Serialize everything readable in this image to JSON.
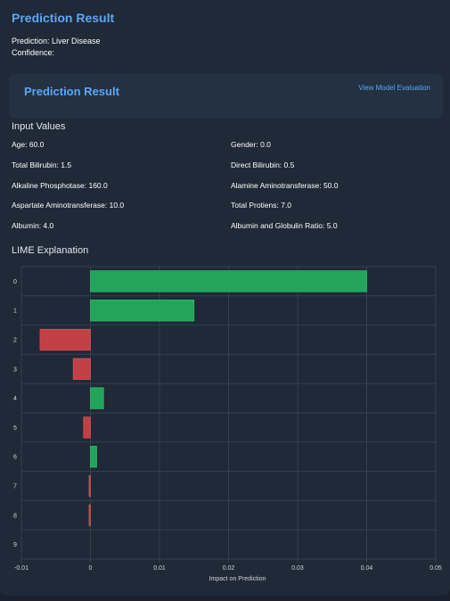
{
  "header": {
    "title": "Prediction Result",
    "prediction_label": "Prediction: Liver Disease",
    "confidence_label": "Confidence:"
  },
  "card": {
    "title": "Prediction Result",
    "link": "View Model Evaluation"
  },
  "inputs": {
    "heading": "Input Values",
    "items": [
      "Age: 60.0",
      "Gender: 0.0",
      "Total Bilirubin: 1.5",
      "Direct Bilirubin: 0.5",
      "Alkaline Phosphotase: 160.0",
      "Alamine Aminotransferase: 50.0",
      "Aspartate Aminotransferase: 10.0",
      "Total Protiens: 7.0",
      "Albumin: 4.0",
      "Albumin and Globulin Ratio: 5.0"
    ]
  },
  "lime": {
    "heading": "LIME Explanation"
  },
  "colors": {
    "positive": "#22a55a",
    "negative": "#c23f45",
    "accent": "#5ba7f7"
  },
  "chart_data": {
    "type": "bar",
    "orientation": "horizontal",
    "categories": [
      "0",
      "1",
      "2",
      "3",
      "4",
      "5",
      "6",
      "7",
      "8",
      "9"
    ],
    "values": [
      0.04,
      0.015,
      -0.0073,
      -0.0025,
      0.0019,
      -0.001,
      0.0009,
      -0.0002,
      -0.0002,
      0.0
    ],
    "xlabel": "Impact on Prediction",
    "xlim": [
      -0.01,
      0.05
    ],
    "xticks": [
      -0.01,
      0,
      0.01,
      0.02,
      0.03,
      0.04,
      0.05
    ],
    "xtick_labels": [
      "-0.01",
      "0",
      "0.01",
      "0.02",
      "0.03",
      "0.04",
      "0.05"
    ],
    "grid": true
  }
}
